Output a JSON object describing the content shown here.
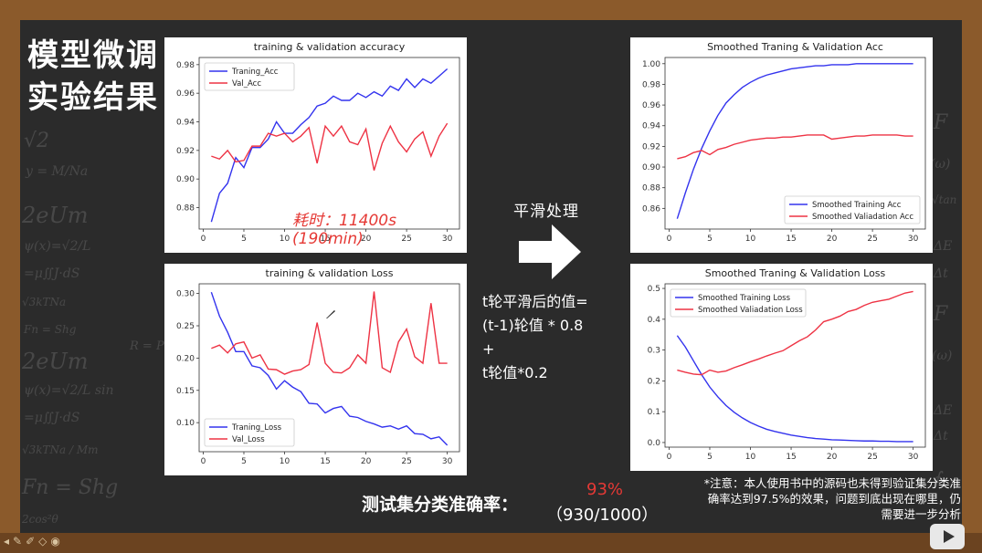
{
  "slide": {
    "title_line1": "模型微调",
    "title_line2": "实验结果",
    "time_note": "耗时：11400s (190min)",
    "smoothing_label": "平滑处理",
    "formula_line1": "t轮平滑后的值=",
    "formula_line2": "(t-1)轮值 * 0.8",
    "formula_line3": "+",
    "formula_line4": "t轮值*0.2",
    "test_label": "测试集分类准确率：",
    "test_acc": "93%",
    "test_detail": "（930/1000）",
    "note": "*注意：本人使用书中的源码也未得到验证集分类准确率达到97.5%的效果，问题到底出现在哪里，仍需要进一步分析",
    "colors": {
      "train": "#3333ee",
      "val": "#ee3344",
      "accent": "#e53935"
    }
  },
  "chart_data": [
    {
      "type": "line",
      "title": "training & validation accuracy",
      "x": [
        1,
        2,
        3,
        4,
        5,
        6,
        7,
        8,
        9,
        10,
        11,
        12,
        13,
        14,
        15,
        16,
        17,
        18,
        19,
        20,
        21,
        22,
        23,
        24,
        25,
        26,
        27,
        28,
        29,
        30
      ],
      "series": [
        {
          "name": "Traning_Acc",
          "values": [
            0.87,
            0.89,
            0.897,
            0.915,
            0.908,
            0.922,
            0.922,
            0.928,
            0.94,
            0.932,
            0.932,
            0.938,
            0.943,
            0.951,
            0.953,
            0.958,
            0.955,
            0.955,
            0.96,
            0.957,
            0.961,
            0.958,
            0.965,
            0.962,
            0.97,
            0.964,
            0.97,
            0.967,
            0.972,
            0.977
          ]
        },
        {
          "name": "Val_Acc",
          "values": [
            0.916,
            0.914,
            0.92,
            0.912,
            0.913,
            0.923,
            0.923,
            0.932,
            0.93,
            0.932,
            0.926,
            0.93,
            0.936,
            0.911,
            0.937,
            0.93,
            0.937,
            0.926,
            0.924,
            0.935,
            0.906,
            0.925,
            0.937,
            0.926,
            0.919,
            0.928,
            0.933,
            0.916,
            0.93,
            0.939
          ]
        }
      ],
      "ylim": [
        0.865,
        0.985
      ],
      "yticks": [
        0.88,
        0.9,
        0.92,
        0.94,
        0.96,
        0.98
      ],
      "xticks": [
        0,
        5,
        10,
        15,
        20,
        25,
        30
      ],
      "xlim": [
        -0.5,
        31.5
      ],
      "legend": "top-left"
    },
    {
      "type": "line",
      "title": "training & validation Loss",
      "x": [
        1,
        2,
        3,
        4,
        5,
        6,
        7,
        8,
        9,
        10,
        11,
        12,
        13,
        14,
        15,
        16,
        17,
        18,
        19,
        20,
        21,
        22,
        23,
        24,
        25,
        26,
        27,
        28,
        29,
        30
      ],
      "series": [
        {
          "name": "Traning_Loss",
          "values": [
            0.302,
            0.265,
            0.24,
            0.21,
            0.21,
            0.188,
            0.185,
            0.173,
            0.152,
            0.165,
            0.155,
            0.148,
            0.13,
            0.129,
            0.115,
            0.122,
            0.125,
            0.11,
            0.108,
            0.102,
            0.098,
            0.093,
            0.095,
            0.09,
            0.095,
            0.083,
            0.082,
            0.075,
            0.078,
            0.065
          ]
        },
        {
          "name": "Val_Loss",
          "values": [
            0.215,
            0.22,
            0.208,
            0.222,
            0.225,
            0.2,
            0.205,
            0.183,
            0.182,
            0.175,
            0.18,
            0.182,
            0.19,
            0.255,
            0.192,
            0.178,
            0.177,
            0.185,
            0.205,
            0.192,
            0.303,
            0.185,
            0.178,
            0.225,
            0.245,
            0.202,
            0.192,
            0.285,
            0.192,
            0.192
          ]
        }
      ],
      "ylim": [
        0.055,
        0.315
      ],
      "yticks": [
        0.1,
        0.15,
        0.2,
        0.25,
        0.3
      ],
      "xticks": [
        0,
        5,
        10,
        15,
        20,
        25,
        30
      ],
      "xlim": [
        -0.5,
        31.5
      ],
      "legend": "bottom-left"
    },
    {
      "type": "line",
      "title": "Smoothed Traning & Validation Acc",
      "x": [
        1,
        2,
        3,
        4,
        5,
        6,
        7,
        8,
        9,
        10,
        11,
        12,
        13,
        14,
        15,
        16,
        17,
        18,
        19,
        20,
        21,
        22,
        23,
        24,
        25,
        26,
        27,
        28,
        29,
        30
      ],
      "series": [
        {
          "name": "Smoothed Training Acc",
          "values": [
            0.85,
            0.875,
            0.898,
            0.918,
            0.935,
            0.95,
            0.962,
            0.97,
            0.977,
            0.982,
            0.986,
            0.989,
            0.991,
            0.993,
            0.995,
            0.996,
            0.997,
            0.998,
            0.998,
            0.999,
            0.999,
            0.999,
            1.0,
            1.0,
            1.0,
            1.0,
            1.0,
            1.0,
            1.0,
            1.0
          ]
        },
        {
          "name": "Smoothed Valiadation Acc",
          "values": [
            0.908,
            0.91,
            0.914,
            0.916,
            0.912,
            0.917,
            0.919,
            0.922,
            0.924,
            0.926,
            0.927,
            0.928,
            0.928,
            0.929,
            0.929,
            0.93,
            0.931,
            0.931,
            0.931,
            0.927,
            0.928,
            0.929,
            0.93,
            0.93,
            0.931,
            0.931,
            0.931,
            0.931,
            0.93,
            0.93
          ]
        }
      ],
      "ylim": [
        0.84,
        1.006
      ],
      "yticks": [
        0.86,
        0.88,
        0.9,
        0.92,
        0.94,
        0.96,
        0.98,
        1.0
      ],
      "xticks": [
        0,
        5,
        10,
        15,
        20,
        25,
        30
      ],
      "xlim": [
        -0.5,
        31.5
      ],
      "legend": "bottom-right"
    },
    {
      "type": "line",
      "title": "Smoothed Traning & Validation Loss",
      "x": [
        1,
        2,
        3,
        4,
        5,
        6,
        7,
        8,
        9,
        10,
        11,
        12,
        13,
        14,
        15,
        16,
        17,
        18,
        19,
        20,
        21,
        22,
        23,
        24,
        25,
        26,
        27,
        28,
        29,
        30
      ],
      "series": [
        {
          "name": "Smoothed Training Loss",
          "values": [
            0.347,
            0.31,
            0.265,
            0.22,
            0.18,
            0.148,
            0.12,
            0.098,
            0.08,
            0.065,
            0.053,
            0.043,
            0.036,
            0.03,
            0.024,
            0.02,
            0.016,
            0.013,
            0.011,
            0.009,
            0.008,
            0.007,
            0.006,
            0.005,
            0.005,
            0.004,
            0.004,
            0.003,
            0.003,
            0.003
          ]
        },
        {
          "name": "Smoothed Valiadation Loss",
          "values": [
            0.235,
            0.228,
            0.222,
            0.22,
            0.235,
            0.228,
            0.232,
            0.243,
            0.252,
            0.262,
            0.271,
            0.281,
            0.29,
            0.298,
            0.314,
            0.33,
            0.343,
            0.365,
            0.392,
            0.4,
            0.41,
            0.425,
            0.432,
            0.445,
            0.455,
            0.46,
            0.465,
            0.475,
            0.485,
            0.49
          ]
        }
      ],
      "ylim": [
        -0.015,
        0.515
      ],
      "yticks": [
        0.0,
        0.1,
        0.2,
        0.3,
        0.4,
        0.5
      ],
      "xticks": [
        0,
        5,
        10,
        15,
        20,
        25,
        30
      ],
      "xlim": [
        -0.5,
        31.5
      ],
      "legend": "top-left"
    }
  ]
}
